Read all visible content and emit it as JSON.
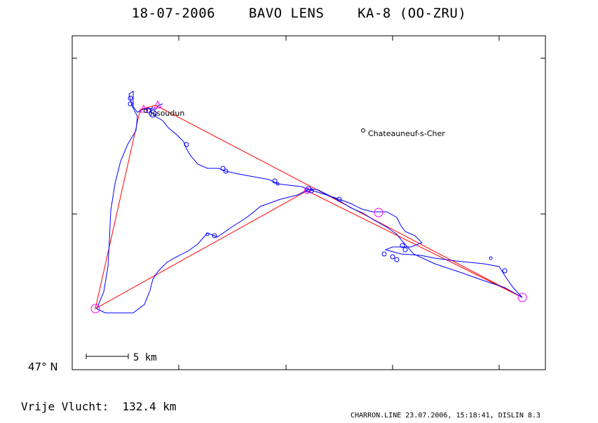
{
  "title": {
    "date": "18-07-2006",
    "pilot": "BAVO LENS",
    "glider": "KA-8 (OO-ZRU)"
  },
  "places": [
    {
      "name": "Issoudun"
    },
    {
      "name": "Chateauneuf-s-Cher"
    }
  ],
  "latitude_label": "47° N",
  "scale_label": "5 km",
  "distance": {
    "label": "Vrije Vlucht:",
    "value": "132.4 km"
  },
  "footer": "CHARRON.LINE 23.07.2006, 15:18:41, DISLIN 8.3",
  "colors": {
    "track": "#0000ff",
    "task": "#ff0000",
    "turnpoint": "#ff00ff",
    "frame": "#000000"
  }
}
